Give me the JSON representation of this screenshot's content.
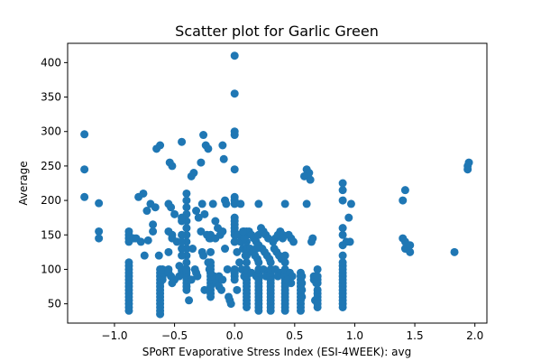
{
  "chart_data": {
    "type": "scatter",
    "title": "Scatter plot for Garlic Green",
    "xlabel": "SPoRT Evaporative Stress Index (ESI-4WEEK): avg",
    "ylabel": "Average",
    "xlim": [
      -1.39,
      2.1
    ],
    "ylim": [
      22,
      428
    ],
    "xticks": [
      -1.0,
      -0.5,
      0.0,
      0.5,
      1.0,
      1.5,
      2.0
    ],
    "xtick_labels": [
      "−1.0",
      "−0.5",
      "0.0",
      "0.5",
      "1.0",
      "1.5",
      "2.0"
    ],
    "yticks": [
      50,
      100,
      150,
      200,
      250,
      300,
      350,
      400
    ],
    "ytick_labels": [
      "50",
      "100",
      "150",
      "200",
      "250",
      "300",
      "350",
      "400"
    ],
    "grid": false,
    "legend": "none",
    "marker_color": "#1f77b4",
    "series": [
      {
        "x": [
          -1.25,
          -1.25,
          -1.25,
          -1.13,
          -1.13,
          -1.13,
          -0.88,
          -0.88,
          -0.88,
          -0.88,
          -0.88,
          -0.88,
          -0.88,
          -0.88,
          -0.88,
          -0.88,
          -0.88,
          -0.88,
          -0.88,
          -0.88,
          -0.88,
          -0.88,
          -0.88,
          -0.88,
          -0.88,
          -0.84,
          -0.8,
          -0.76,
          -0.82,
          -0.78,
          -0.72,
          -0.75,
          -0.73,
          -0.68,
          -0.65,
          -0.62,
          -0.7,
          -0.66,
          -0.63,
          -0.68,
          -0.62,
          -0.62,
          -0.62,
          -0.62,
          -0.62,
          -0.62,
          -0.62,
          -0.62,
          -0.62,
          -0.62,
          -0.62,
          -0.62,
          -0.62,
          -0.62,
          -0.6,
          -0.6,
          -0.6,
          -0.6,
          -0.55,
          -0.53,
          -0.55,
          -0.52,
          -0.52,
          -0.55,
          -0.55,
          -0.55,
          -0.53,
          -0.5,
          -0.54,
          -0.52,
          -0.5,
          -0.52,
          -0.48,
          -0.46,
          -0.44,
          -0.42,
          -0.44,
          -0.46,
          -0.4,
          -0.38,
          -0.4,
          -0.4,
          -0.4,
          -0.4,
          -0.4,
          -0.4,
          -0.4,
          -0.4,
          -0.4,
          -0.4,
          -0.4,
          -0.4,
          -0.4,
          -0.4,
          -0.4,
          -0.4,
          -0.4,
          -0.36,
          -0.34,
          -0.32,
          -0.3,
          -0.28,
          -0.35,
          -0.33,
          -0.31,
          -0.36,
          -0.32,
          -0.28,
          -0.26,
          -0.24,
          -0.22,
          -0.27,
          -0.25,
          -0.23,
          -0.21,
          -0.2,
          -0.2,
          -0.2,
          -0.2,
          -0.2,
          -0.2,
          -0.2,
          -0.2,
          -0.2,
          -0.2,
          -0.2,
          -0.2,
          -0.2,
          -0.2,
          -0.18,
          -0.16,
          -0.14,
          -0.12,
          -0.17,
          -0.15,
          -0.13,
          -0.11,
          -0.16,
          -0.1,
          -0.09,
          -0.08,
          -0.07,
          -0.1,
          -0.08,
          -0.06,
          -0.27,
          -0.26,
          -0.22,
          -0.21,
          -0.2,
          -0.13,
          -0.1,
          -0.05,
          -0.04,
          -0.03,
          0.0,
          0.0,
          0.0,
          0.0,
          0.0,
          0.0,
          0.0,
          0.0,
          0.0,
          0.0,
          0.0,
          0.0,
          0.0,
          0.0,
          0.0,
          0.0,
          0.0,
          0.0,
          0.0,
          0.03,
          0.05,
          0.07,
          0.09,
          0.04,
          0.06,
          0.08,
          0.1,
          0.05,
          0.08,
          0.11,
          0.1,
          0.1,
          0.1,
          0.1,
          0.1,
          0.1,
          0.1,
          0.1,
          0.1,
          0.1,
          0.1,
          0.1,
          0.1,
          0.1,
          0.1,
          0.1,
          0.1,
          0.1,
          0.12,
          0.14,
          0.16,
          0.18,
          0.2,
          0.13,
          0.15,
          0.17,
          0.19,
          0.14,
          0.18,
          0.2,
          0.2,
          0.2,
          0.2,
          0.2,
          0.2,
          0.2,
          0.2,
          0.2,
          0.2,
          0.2,
          0.2,
          0.2,
          0.2,
          0.2,
          0.2,
          0.22,
          0.24,
          0.26,
          0.28,
          0.23,
          0.25,
          0.27,
          0.29,
          0.24,
          0.28,
          0.26,
          0.3,
          0.3,
          0.3,
          0.3,
          0.3,
          0.3,
          0.3,
          0.3,
          0.3,
          0.3,
          0.3,
          0.3,
          0.3,
          0.3,
          0.3,
          0.32,
          0.34,
          0.36,
          0.38,
          0.33,
          0.35,
          0.37,
          0.39,
          0.34,
          0.38,
          0.36,
          0.42,
          0.42,
          0.42,
          0.42,
          0.42,
          0.42,
          0.42,
          0.42,
          0.42,
          0.42,
          0.42,
          0.42,
          0.42,
          0.42,
          0.42,
          0.42,
          0.45,
          0.47,
          0.49,
          0.46,
          0.48,
          0.44,
          0.47,
          0.55,
          0.55,
          0.55,
          0.55,
          0.55,
          0.55,
          0.55,
          0.55,
          0.55,
          0.55,
          0.55,
          0.55,
          0.6,
          0.62,
          0.58,
          0.63,
          0.6,
          0.65,
          0.64,
          0.66,
          0.68,
          0.66,
          0.67,
          0.69,
          0.69,
          0.69,
          0.69,
          0.69,
          0.69,
          0.69,
          0.69,
          0.69,
          0.69,
          0.9,
          0.9,
          0.9,
          0.9,
          0.9,
          0.9,
          0.9,
          0.9,
          0.9,
          0.9,
          0.9,
          0.9,
          0.9,
          0.9,
          0.9,
          0.9,
          0.9,
          0.9,
          0.9,
          0.9,
          0.9,
          0.93,
          0.96,
          0.97,
          0.95,
          1.4,
          1.4,
          1.42,
          1.42,
          1.42,
          1.43,
          1.46,
          1.46,
          1.83,
          1.94,
          1.94,
          1.95,
          -0.25,
          0.02,
          0.0,
          0.0,
          0.08,
          -0.44,
          -0.44,
          -0.44,
          -0.44,
          -0.44,
          -0.44,
          0.02,
          0.18,
          0.56,
          0.56,
          0.56,
          0.56,
          0.07,
          0.4,
          0.4
        ],
        "y": [
          296,
          245,
          205,
          196,
          155,
          145,
          40,
          45,
          50,
          55,
          60,
          65,
          70,
          75,
          80,
          85,
          90,
          95,
          100,
          105,
          110,
          140,
          145,
          150,
          155,
          145,
          205,
          210,
          145,
          140,
          142,
          120,
          185,
          155,
          275,
          280,
          195,
          190,
          120,
          165,
          35,
          40,
          45,
          50,
          55,
          60,
          65,
          70,
          75,
          80,
          85,
          90,
          95,
          100,
          85,
          90,
          95,
          100,
          195,
          190,
          155,
          145,
          150,
          125,
          100,
          95,
          90,
          85,
          255,
          250,
          180,
          80,
          140,
          105,
          285,
          100,
          98,
          90,
          70,
          55,
          75,
          80,
          85,
          90,
          95,
          100,
          110,
          120,
          130,
          140,
          150,
          160,
          170,
          180,
          190,
          200,
          210,
          235,
          240,
          185,
          175,
          155,
          130,
          100,
          90,
          85,
          95,
          255,
          295,
          280,
          275,
          195,
          180,
          150,
          145,
          60,
          65,
          70,
          75,
          80,
          85,
          90,
          95,
          100,
          105,
          110,
          125,
          145,
          150,
          195,
          170,
          160,
          150,
          90,
          80,
          75,
          70,
          145,
          280,
          260,
          200,
          195,
          155,
          130,
          100,
          125,
          120,
          110,
          100,
          95,
          90,
          85,
          60,
          55,
          50,
          140,
          150,
          155,
          160,
          165,
          170,
          175,
          195,
          200,
          205,
          245,
          295,
          300,
          355,
          410,
          85,
          90,
          95,
          100,
          150,
          140,
          130,
          120,
          110,
          100,
          90,
          85,
          195,
          155,
          95,
          45,
          50,
          55,
          60,
          65,
          70,
          75,
          80,
          85,
          90,
          95,
          100,
          110,
          120,
          130,
          140,
          150,
          155,
          155,
          150,
          145,
          140,
          135,
          130,
          125,
          120,
          115,
          95,
          90,
          40,
          45,
          50,
          55,
          60,
          65,
          70,
          75,
          80,
          85,
          90,
          95,
          100,
          110,
          150,
          195,
          160,
          155,
          150,
          145,
          130,
          125,
          120,
          115,
          100,
          95,
          90,
          85,
          40,
          45,
          50,
          55,
          60,
          65,
          70,
          75,
          80,
          85,
          90,
          95,
          100,
          110,
          140,
          145,
          150,
          155,
          130,
          125,
          120,
          115,
          100,
          95,
          90,
          40,
          45,
          50,
          55,
          60,
          65,
          70,
          75,
          80,
          85,
          90,
          95,
          100,
          110,
          120,
          195,
          150,
          145,
          140,
          95,
          90,
          85,
          80,
          40,
          45,
          50,
          55,
          60,
          65,
          70,
          75,
          80,
          85,
          90,
          95,
          245,
          240,
          235,
          230,
          195,
          145,
          140,
          85,
          80,
          90,
          55,
          45,
          50,
          55,
          60,
          65,
          70,
          80,
          85,
          90,
          100,
          45,
          50,
          55,
          60,
          65,
          70,
          75,
          80,
          85,
          90,
          95,
          100,
          105,
          110,
          120,
          135,
          150,
          160,
          200,
          215,
          225,
          140,
          140,
          195,
          175,
          145,
          200,
          140,
          215,
          130,
          130,
          125,
          135,
          125,
          245,
          250,
          255,
          70,
          70,
          140,
          95,
          145,
          170,
          175,
          150,
          140,
          130,
          120,
          125,
          130,
          60,
          70,
          80,
          90,
          155,
          150,
          145
        ]
      }
    ]
  }
}
